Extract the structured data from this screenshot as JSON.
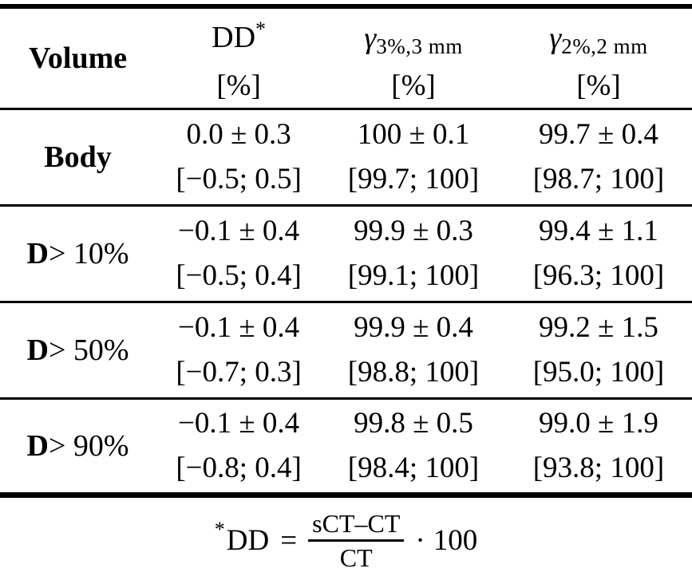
{
  "colors": {
    "text": "#000000",
    "background": "#ffffff"
  },
  "table": {
    "header": {
      "volume": "Volume",
      "dd_label": "DD",
      "dd_sup": "*",
      "dd_unit": "[%]",
      "gamma3_symbol": "γ",
      "gamma3_sub": "3%,3 mm",
      "gamma3_unit": "[%]",
      "gamma2_symbol": "γ",
      "gamma2_sub": "2%,2 mm",
      "gamma2_unit": "[%]"
    },
    "rows": [
      {
        "label_bold": "Body",
        "label_rest": "",
        "dd_mean": "0.0 ± 0.3",
        "dd_range": "[−0.5; 0.5]",
        "gamma3_mean": "100 ± 0.1",
        "gamma3_range": "[99.7; 100]",
        "gamma2_mean": "99.7 ± 0.4",
        "gamma2_range": "[98.7; 100]"
      },
      {
        "label_bold": "D",
        "label_rest": "> 10%",
        "dd_mean": "−0.1 ± 0.4",
        "dd_range": "[−0.5; 0.4]",
        "gamma3_mean": "99.9 ± 0.3",
        "gamma3_range": "[99.1; 100]",
        "gamma2_mean": "99.4 ± 1.1",
        "gamma2_range": "[96.3; 100]"
      },
      {
        "label_bold": "D",
        "label_rest": "> 50%",
        "dd_mean": "−0.1 ± 0.4",
        "dd_range": "[−0.7; 0.3]",
        "gamma3_mean": "99.9 ± 0.4",
        "gamma3_range": "[98.8; 100]",
        "gamma2_mean": "99.2 ± 1.5",
        "gamma2_range": "[95.0; 100]"
      },
      {
        "label_bold": "D",
        "label_rest": "> 90%",
        "dd_mean": "−0.1 ± 0.4",
        "dd_range": "[−0.8; 0.4]",
        "gamma3_mean": "99.8 ± 0.5",
        "gamma3_range": "[98.4; 100]",
        "gamma2_mean": "99.0 ± 1.9",
        "gamma2_range": "[93.8; 100]"
      }
    ]
  },
  "footnote": {
    "star": "*",
    "lhs": "DD",
    "equals": "=",
    "numerator": "sCT–CT",
    "denominator": "CT",
    "dot": "·",
    "factor": "100"
  }
}
